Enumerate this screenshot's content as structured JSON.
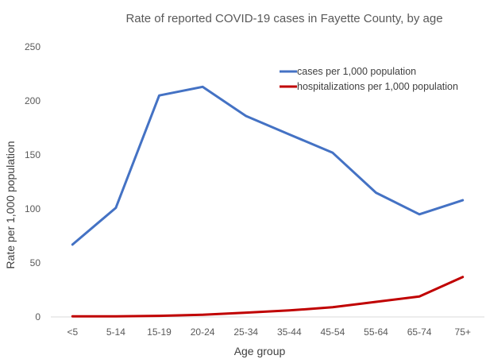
{
  "chart_data": {
    "type": "line",
    "title": "Rate of reported COVID-19 cases in Fayette County, by age",
    "xlabel": "Age group",
    "ylabel": "Rate per 1,000 population",
    "categories": [
      "<5",
      "5-14",
      "15-19",
      "20-24",
      "25-34",
      "35-44",
      "45-54",
      "55-64",
      "65-74",
      "75+"
    ],
    "ylim": [
      0,
      250
    ],
    "yticks": [
      0,
      50,
      100,
      150,
      200,
      250
    ],
    "grid": false,
    "legend_position": "top-right",
    "series": [
      {
        "name": "cases per 1,000 population",
        "color": "#4472C4",
        "values": [
          67,
          101,
          205,
          213,
          186,
          169,
          152,
          115,
          95,
          108
        ]
      },
      {
        "name": "hospitalizations per 1,000 population",
        "color": "#C00000",
        "values": [
          0.5,
          0.5,
          1,
          2,
          4,
          6,
          9,
          14,
          19,
          37
        ]
      }
    ]
  }
}
